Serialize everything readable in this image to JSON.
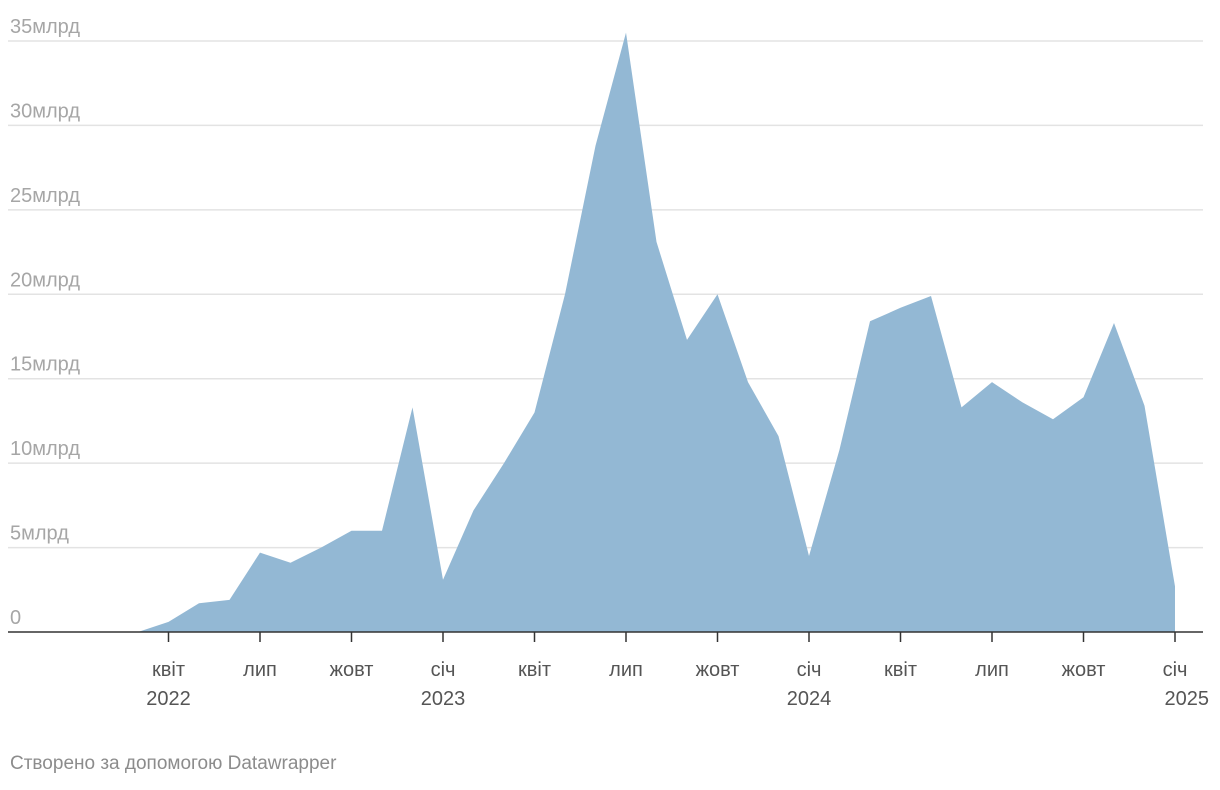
{
  "footer": "Створено за допомогою Datawrapper",
  "colors": {
    "area": "#93b8d4",
    "grid": "#e3e3e3",
    "axis": "#333333"
  },
  "chart_data": {
    "type": "area",
    "title": "",
    "xlabel": "",
    "ylabel": "",
    "grid": true,
    "legend": "none",
    "ylim": [
      0,
      35000000000
    ],
    "yticks": [
      {
        "value": 0,
        "label": "0"
      },
      {
        "value": 5000000000,
        "label": "5млрд"
      },
      {
        "value": 10000000000,
        "label": "10млрд"
      },
      {
        "value": 15000000000,
        "label": "15млрд"
      },
      {
        "value": 20000000000,
        "label": "20млрд"
      },
      {
        "value": 25000000000,
        "label": "25млрд"
      },
      {
        "value": 30000000000,
        "label": "30млрд"
      },
      {
        "value": 35000000000,
        "label": "35млрд"
      }
    ],
    "xticks": [
      {
        "date": "2022-04",
        "label": "квіт",
        "year": "2022"
      },
      {
        "date": "2022-07",
        "label": "лип",
        "year": ""
      },
      {
        "date": "2022-10",
        "label": "жовт",
        "year": ""
      },
      {
        "date": "2023-01",
        "label": "січ",
        "year": "2023"
      },
      {
        "date": "2023-04",
        "label": "квіт",
        "year": ""
      },
      {
        "date": "2023-07",
        "label": "лип",
        "year": ""
      },
      {
        "date": "2023-10",
        "label": "жовт",
        "year": ""
      },
      {
        "date": "2024-01",
        "label": "січ",
        "year": "2024"
      },
      {
        "date": "2024-04",
        "label": "квіт",
        "year": ""
      },
      {
        "date": "2024-07",
        "label": "лип",
        "year": ""
      },
      {
        "date": "2024-10",
        "label": "жовт",
        "year": ""
      },
      {
        "date": "2025-01",
        "label": "січ",
        "year": "2025"
      }
    ],
    "x": [
      "2022-01",
      "2022-02",
      "2022-03",
      "2022-04",
      "2022-05",
      "2022-06",
      "2022-07",
      "2022-08",
      "2022-09",
      "2022-10",
      "2022-11",
      "2022-12",
      "2023-01",
      "2023-02",
      "2023-03",
      "2023-04",
      "2023-05",
      "2023-06",
      "2023-07",
      "2023-08",
      "2023-09",
      "2023-10",
      "2023-11",
      "2023-12",
      "2024-01",
      "2024-02",
      "2024-03",
      "2024-04",
      "2024-05",
      "2024-06",
      "2024-07",
      "2024-08",
      "2024-09",
      "2024-10",
      "2024-11",
      "2024-12",
      "2025-01"
    ],
    "values": [
      0,
      0,
      0,
      600000000,
      1700000000,
      1900000000,
      4700000000,
      4100000000,
      5000000000,
      6000000000,
      6000000000,
      13300000000,
      3100000000,
      7200000000,
      10000000000,
      13000000000,
      20000000000,
      28800000000,
      35500000000,
      23100000000,
      17300000000,
      20000000000,
      14800000000,
      11600000000,
      4500000000,
      10800000000,
      18400000000,
      19200000000,
      19900000000,
      13300000000,
      14800000000,
      13600000000,
      12600000000,
      13900000000,
      18300000000,
      13400000000,
      2700000000
    ]
  }
}
